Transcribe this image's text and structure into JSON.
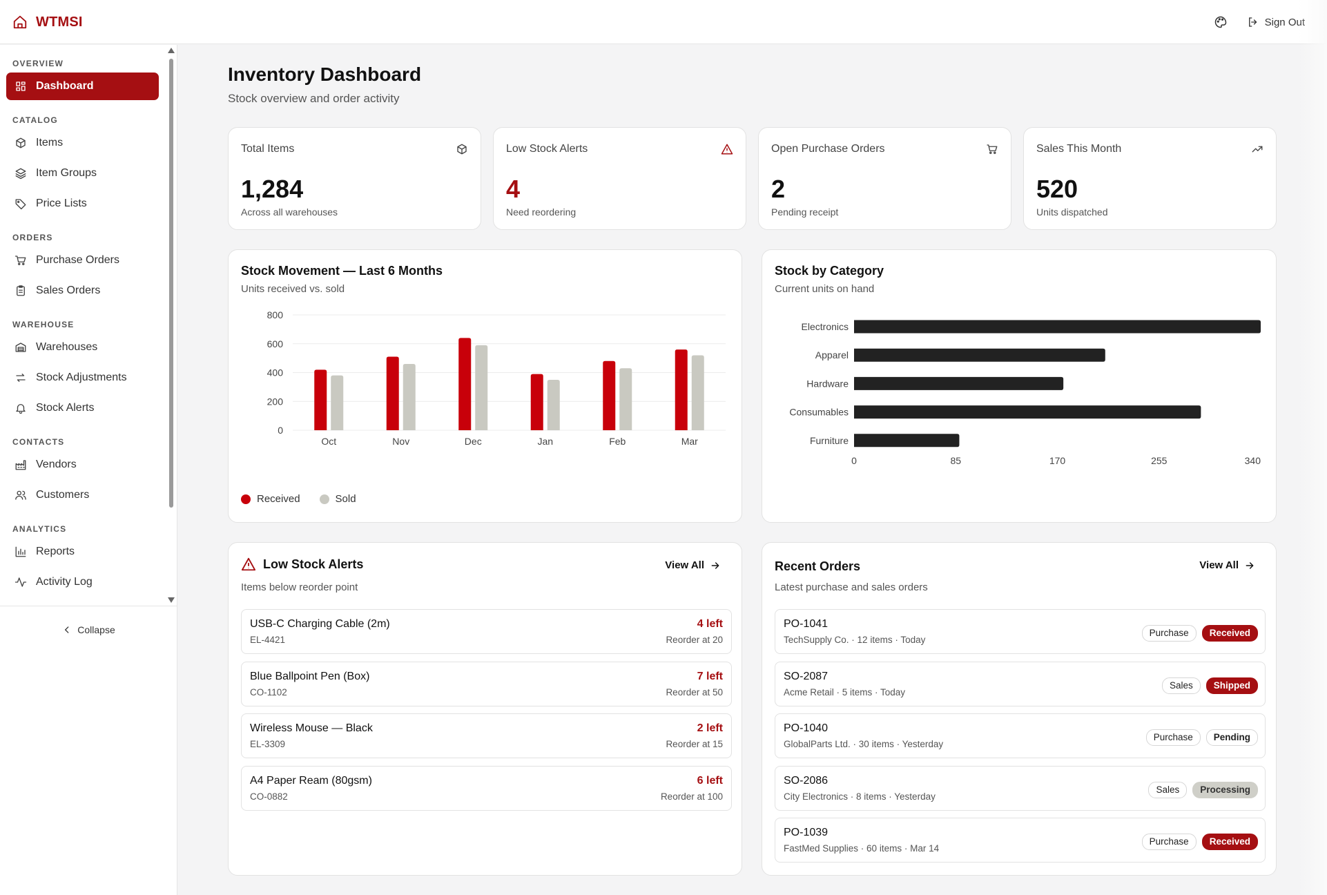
{
  "app": {
    "brand": "WTMSI",
    "sign_out": "Sign Out"
  },
  "sidebar": {
    "sections": [
      {
        "title": "Overview",
        "items": [
          {
            "label": "Dashboard",
            "icon": "dashboard-icon",
            "active": true
          }
        ]
      },
      {
        "title": "Catalog",
        "items": [
          {
            "label": "Items",
            "icon": "box-icon"
          },
          {
            "label": "Item Groups",
            "icon": "layers-icon"
          },
          {
            "label": "Price Lists",
            "icon": "tag-icon"
          }
        ]
      },
      {
        "title": "Orders",
        "items": [
          {
            "label": "Purchase Orders",
            "icon": "cart-icon"
          },
          {
            "label": "Sales Orders",
            "icon": "clipboard-icon"
          }
        ]
      },
      {
        "title": "Warehouse",
        "items": [
          {
            "label": "Warehouses",
            "icon": "warehouse-icon"
          },
          {
            "label": "Stock Adjustments",
            "icon": "arrows-icon"
          },
          {
            "label": "Stock Alerts",
            "icon": "bell-icon"
          }
        ]
      },
      {
        "title": "Contacts",
        "items": [
          {
            "label": "Vendors",
            "icon": "factory-icon"
          },
          {
            "label": "Customers",
            "icon": "users-icon"
          }
        ]
      },
      {
        "title": "Analytics",
        "items": [
          {
            "label": "Reports",
            "icon": "bar-chart-icon"
          },
          {
            "label": "Activity Log",
            "icon": "activity-icon"
          }
        ]
      }
    ],
    "collapse_label": "Collapse"
  },
  "page": {
    "title": "Inventory Dashboard",
    "subtitle": "Stock overview and order activity"
  },
  "stats": [
    {
      "label": "Total Items",
      "value": "1,284",
      "sub": "Across all warehouses",
      "icon": "box-icon"
    },
    {
      "label": "Low Stock Alerts",
      "value": "4",
      "sub": "Need reordering",
      "icon": "alert-triangle-icon"
    },
    {
      "label": "Open Purchase Orders",
      "value": "2",
      "sub": "Pending receipt",
      "icon": "cart-icon"
    },
    {
      "label": "Sales This Month",
      "value": "520",
      "sub": "Units dispatched",
      "icon": "trending-up-icon"
    }
  ],
  "movement_card": {
    "title": "Stock Movement — Last 6 Months",
    "subtitle": "Units received vs. sold"
  },
  "category_card": {
    "title": "Stock by Category",
    "subtitle": "Current units on hand"
  },
  "chart_data": [
    {
      "type": "bar",
      "title": "Stock Movement — Last 6 Months",
      "categories": [
        "Oct",
        "Nov",
        "Dec",
        "Jan",
        "Feb",
        "Mar"
      ],
      "series": [
        {
          "name": "Received",
          "values": [
            420,
            510,
            640,
            390,
            480,
            560
          ],
          "color": "#c8000a"
        },
        {
          "name": "Sold",
          "values": [
            380,
            460,
            590,
            350,
            430,
            520
          ],
          "color": "#c9c9c1"
        }
      ],
      "ylim": [
        0,
        800
      ],
      "yticks": [
        "0",
        "200",
        "400",
        "600",
        "800"
      ],
      "grid": true,
      "legend": "bottom-left"
    },
    {
      "type": "bar",
      "orientation": "horizontal",
      "title": "Stock by Category",
      "categories": [
        "Electronics",
        "Apparel",
        "Hardware",
        "Consumables",
        "Furniture"
      ],
      "values": [
        340,
        210,
        175,
        290,
        88
      ],
      "xlim": [
        0,
        340
      ],
      "xticks": [
        "0",
        "85",
        "170",
        "255",
        "340"
      ],
      "color": "#222222"
    }
  ],
  "low_stock": {
    "title": "Low Stock Alerts",
    "subtitle": "Items below reorder point",
    "view_all": "View All",
    "items": [
      {
        "name": "USB-C Charging Cable (2m)",
        "code": "EL-4421",
        "left": "4 left",
        "reorder": "Reorder at 20"
      },
      {
        "name": "Blue Ballpoint Pen (Box)",
        "code": "CO-1102",
        "left": "7 left",
        "reorder": "Reorder at 50"
      },
      {
        "name": "Wireless Mouse — Black",
        "code": "EL-3309",
        "left": "2 left",
        "reorder": "Reorder at 15"
      },
      {
        "name": "A4 Paper Ream (80gsm)",
        "code": "CO-0882",
        "left": "6 left",
        "reorder": "Reorder at 100"
      }
    ]
  },
  "recent_orders": {
    "title": "Recent Orders",
    "subtitle": "Latest purchase and sales orders",
    "view_all": "View All",
    "items": [
      {
        "id": "PO-1041",
        "meta": "TechSupply Co. · 12 items · Today",
        "type": "Purchase",
        "status": "Received",
        "status_style": "red"
      },
      {
        "id": "SO-2087",
        "meta": "Acme Retail · 5 items · Today",
        "type": "Sales",
        "status": "Shipped",
        "status_style": "red"
      },
      {
        "id": "PO-1040",
        "meta": "GlobalParts Ltd. · 30 items · Yesterday",
        "type": "Purchase",
        "status": "Pending",
        "status_style": "outline"
      },
      {
        "id": "SO-2086",
        "meta": "City Electronics · 8 items · Yesterday",
        "type": "Sales",
        "status": "Processing",
        "status_style": "grey"
      },
      {
        "id": "PO-1039",
        "meta": "FastMed Supplies · 60 items · Mar 14",
        "type": "Purchase",
        "status": "Received",
        "status_style": "red"
      }
    ]
  },
  "colors": {
    "accent": "#a50f12",
    "received": "#c8000a",
    "sold": "#c9c9c1",
    "category_bar": "#222222"
  }
}
